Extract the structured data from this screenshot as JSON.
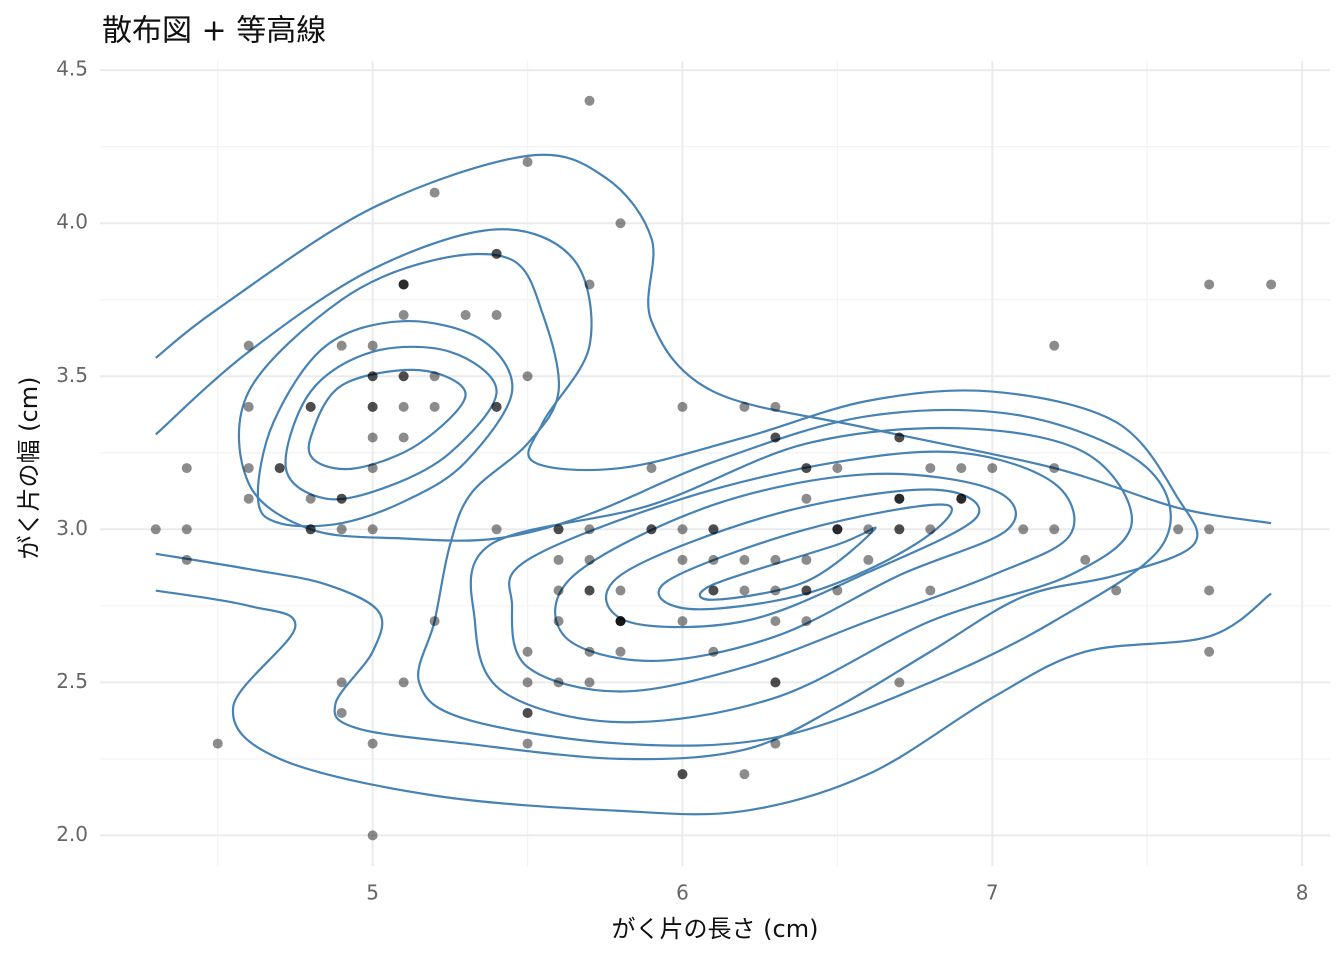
{
  "chart_data": {
    "type": "scatter",
    "title": "散布図 + 等高線",
    "x_label": "がく片の長さ (cm)",
    "y_label": "がく片の幅 (cm)",
    "xlim": [
      4.12,
      8.09
    ],
    "ylim": [
      1.9,
      4.53
    ],
    "xticks": [
      5,
      6,
      7,
      8
    ],
    "yticks": [
      {
        "value": 2,
        "label": "2.0"
      },
      2.5,
      {
        "value": 3,
        "label": "3.0"
      },
      3.5,
      {
        "value": 4,
        "label": "4.0"
      },
      4.5
    ],
    "minor_xticks": [
      4.5,
      5.5,
      6.5,
      7.5
    ],
    "minor_yticks": [
      2.25,
      2.75,
      3.25,
      3.75,
      4.25
    ],
    "grid": true,
    "point_color": "#000000",
    "point_opacity": 0.45,
    "contour_color": "#4682b4",
    "x": [
      5.1,
      4.9,
      4.7,
      4.6,
      5.0,
      5.4,
      4.6,
      5.0,
      4.4,
      4.9,
      5.4,
      4.8,
      4.8,
      4.3,
      5.8,
      5.7,
      5.4,
      5.1,
      5.7,
      5.1,
      5.4,
      5.1,
      4.6,
      5.1,
      4.8,
      5.0,
      5.0,
      5.2,
      5.2,
      4.7,
      4.8,
      5.4,
      5.2,
      5.5,
      4.9,
      5.0,
      5.5,
      4.9,
      4.4,
      5.1,
      5.0,
      4.5,
      4.4,
      5.0,
      5.1,
      4.8,
      5.1,
      4.6,
      5.3,
      5.0,
      7.0,
      6.4,
      6.9,
      5.5,
      6.5,
      5.7,
      6.3,
      4.9,
      6.6,
      5.2,
      5.0,
      5.9,
      6.0,
      6.1,
      5.6,
      6.7,
      5.6,
      5.8,
      6.2,
      5.6,
      5.9,
      6.1,
      6.3,
      6.1,
      6.4,
      6.6,
      6.8,
      6.7,
      6.0,
      5.7,
      5.5,
      5.5,
      5.8,
      6.0,
      5.4,
      6.0,
      6.7,
      6.3,
      5.6,
      5.5,
      5.5,
      6.1,
      5.8,
      5.0,
      5.6,
      5.7,
      5.7,
      6.2,
      5.1,
      5.7,
      6.3,
      5.8,
      7.1,
      6.3,
      6.5,
      7.6,
      4.9,
      7.3,
      6.7,
      7.2,
      6.5,
      6.4,
      6.8,
      5.7,
      5.8,
      6.4,
      6.5,
      7.7,
      7.7,
      6.0,
      6.9,
      5.6,
      7.7,
      6.3,
      6.7,
      7.2,
      6.2,
      6.1,
      6.4,
      7.2,
      7.4,
      7.9,
      6.4,
      6.3,
      6.1,
      7.7,
      6.3,
      6.4,
      6.0,
      6.9,
      6.7,
      6.9,
      5.8,
      6.8,
      6.7,
      6.7,
      6.3,
      6.5,
      6.2,
      5.9
    ],
    "y": [
      3.5,
      3.0,
      3.2,
      3.1,
      3.6,
      3.9,
      3.4,
      3.4,
      2.9,
      3.1,
      3.7,
      3.4,
      3.0,
      3.0,
      4.0,
      4.4,
      3.9,
      3.5,
      3.8,
      3.8,
      3.4,
      3.7,
      3.6,
      3.3,
      3.4,
      3.0,
      3.4,
      3.5,
      3.4,
      3.2,
      3.1,
      3.4,
      4.1,
      4.2,
      3.1,
      3.2,
      3.5,
      3.6,
      3.0,
      3.4,
      3.5,
      2.3,
      3.2,
      3.5,
      3.8,
      3.0,
      3.8,
      3.2,
      3.7,
      3.3,
      3.2,
      3.2,
      3.1,
      2.3,
      2.8,
      2.8,
      3.3,
      2.4,
      2.9,
      2.7,
      2.0,
      3.0,
      2.2,
      2.9,
      2.9,
      3.1,
      3.0,
      2.7,
      2.2,
      2.5,
      3.2,
      2.8,
      2.5,
      2.8,
      2.9,
      3.0,
      2.8,
      3.0,
      2.9,
      2.6,
      2.4,
      2.4,
      2.7,
      2.7,
      3.0,
      3.4,
      3.1,
      2.3,
      3.0,
      2.5,
      2.6,
      3.0,
      2.6,
      2.3,
      2.7,
      3.0,
      2.9,
      2.9,
      2.5,
      2.8,
      3.3,
      2.7,
      3.0,
      2.9,
      3.0,
      3.0,
      2.5,
      2.9,
      2.5,
      3.6,
      3.2,
      2.7,
      3.0,
      2.5,
      2.8,
      3.2,
      3.0,
      3.8,
      2.6,
      2.2,
      3.2,
      2.8,
      2.8,
      2.7,
      3.3,
      3.2,
      2.8,
      3.0,
      2.8,
      3.0,
      2.8,
      3.8,
      2.8,
      2.8,
      2.6,
      3.0,
      3.4,
      3.1,
      3.0,
      3.1,
      3.1,
      3.1,
      2.7,
      3.2,
      3.3,
      3.0,
      2.5,
      3.0,
      3.4,
      3.0
    ],
    "contours": [
      {
        "closed": false,
        "x": [
          4.3,
          4.5,
          5.0,
          5.5,
          5.75,
          5.9,
          5.9,
          6.1,
          6.6,
          7.2,
          7.6,
          7.9,
          null,
          4.3,
          4.6,
          4.75,
          4.55,
          4.7,
          5.2,
          5.8,
          6.2,
          6.6,
          7.0,
          7.3,
          7.7,
          7.9
        ],
        "y": [
          3.56,
          3.72,
          4.05,
          4.22,
          4.15,
          3.95,
          3.68,
          3.45,
          3.33,
          3.2,
          3.07,
          3.02,
          null,
          2.8,
          2.75,
          2.68,
          2.42,
          2.25,
          2.13,
          2.08,
          2.08,
          2.2,
          2.45,
          2.6,
          2.65,
          2.79
        ]
      },
      {
        "closed": false,
        "x": [
          4.3,
          4.6,
          5.0,
          5.4,
          5.65,
          5.7,
          5.55,
          5.52,
          5.8,
          6.2,
          6.6,
          7.0,
          7.4,
          7.6,
          7.65,
          7.4,
          7.1,
          6.8,
          6.5,
          6.2,
          5.8,
          5.3,
          4.95,
          4.88,
          5.0,
          5.02,
          4.85,
          4.6,
          4.3
        ],
        "y": [
          3.31,
          3.58,
          3.85,
          3.98,
          3.88,
          3.6,
          3.35,
          3.22,
          3.2,
          3.3,
          3.42,
          3.45,
          3.35,
          3.1,
          2.95,
          2.85,
          2.78,
          2.6,
          2.42,
          2.28,
          2.25,
          2.3,
          2.35,
          2.43,
          2.6,
          2.73,
          2.82,
          2.87,
          2.92
        ]
      },
      {
        "closed": true,
        "x": [
          4.6,
          4.6,
          4.9,
          5.2,
          5.45,
          5.55,
          5.6,
          5.5,
          5.32,
          5.25,
          5.2,
          5.15,
          5.3,
          5.8,
          6.3,
          6.8,
          7.2,
          7.55,
          7.5,
          7.1,
          6.6,
          6.1,
          5.7,
          5.4,
          5.1,
          4.8
        ],
        "y": [
          3.15,
          3.45,
          3.75,
          3.88,
          3.88,
          3.7,
          3.45,
          3.28,
          3.12,
          2.95,
          2.7,
          2.5,
          2.38,
          2.3,
          2.32,
          2.5,
          2.7,
          2.95,
          3.2,
          3.37,
          3.37,
          3.22,
          3.05,
          2.97,
          2.97,
          3.0
        ]
      },
      {
        "closed": true,
        "x": [
          4.63,
          4.68,
          4.85,
          5.1,
          5.35,
          5.45,
          5.3,
          5.12,
          4.9,
          4.7
        ],
        "y": [
          3.1,
          3.35,
          3.6,
          3.68,
          3.62,
          3.45,
          3.22,
          3.1,
          3.02,
          3.02
        ]
      },
      {
        "closed": true,
        "x": [
          4.72,
          4.8,
          5.0,
          5.25,
          5.4,
          5.25,
          5.05,
          4.85
        ],
        "y": [
          3.2,
          3.45,
          3.58,
          3.58,
          3.45,
          3.25,
          3.14,
          3.1
        ]
      },
      {
        "closed": true,
        "x": [
          4.8,
          4.9,
          5.15,
          5.3,
          5.15,
          4.95,
          4.82
        ],
        "y": [
          3.3,
          3.47,
          3.52,
          3.44,
          3.28,
          3.2,
          3.22
        ]
      },
      {
        "closed": true,
        "x": [
          5.38,
          5.9,
          6.4,
          6.9,
          7.3,
          7.45,
          7.25,
          6.8,
          6.3,
          5.8,
          5.42,
          5.33
        ],
        "y": [
          2.95,
          3.08,
          3.28,
          3.33,
          3.25,
          3.02,
          2.85,
          2.7,
          2.45,
          2.37,
          2.47,
          2.7
        ]
      },
      {
        "closed": true,
        "x": [
          5.5,
          6.0,
          6.5,
          6.9,
          7.2,
          7.25,
          7.0,
          6.6,
          6.2,
          5.8,
          5.5,
          5.45
        ],
        "y": [
          2.9,
          3.1,
          3.22,
          3.25,
          3.15,
          2.98,
          2.85,
          2.7,
          2.55,
          2.47,
          2.55,
          2.75
        ]
      },
      {
        "closed": true,
        "x": [
          5.65,
          6.1,
          6.6,
          7.0,
          7.05,
          6.7,
          6.3,
          5.9,
          5.62
        ],
        "y": [
          2.85,
          3.08,
          3.18,
          3.13,
          3.0,
          2.85,
          2.65,
          2.57,
          2.65
        ]
      },
      {
        "closed": true,
        "x": [
          5.8,
          6.3,
          6.8,
          6.95,
          6.6,
          6.2,
          5.82
        ],
        "y": [
          2.85,
          3.05,
          3.13,
          3.04,
          2.86,
          2.7,
          2.7
        ]
      },
      {
        "closed": true,
        "x": [
          5.95,
          6.4,
          6.85,
          6.75,
          6.4,
          6.02
        ],
        "y": [
          2.83,
          3.0,
          3.08,
          2.95,
          2.79,
          2.74
        ]
      },
      {
        "closed": true,
        "x": [
          6.1,
          6.5,
          6.62,
          6.4,
          6.1
        ],
        "y": [
          2.82,
          2.95,
          3.0,
          2.83,
          2.77
        ]
      }
    ]
  }
}
